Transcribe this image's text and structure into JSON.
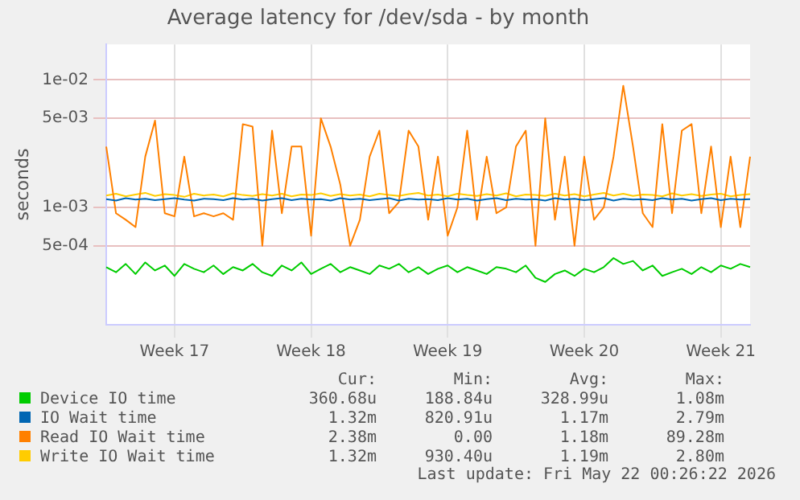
{
  "chart_data": {
    "type": "line",
    "title": "Average latency for /dev/sda - by month",
    "ylabel": "seconds",
    "log": "y",
    "grid": true,
    "legend": "bottom",
    "marker": "none",
    "line_style": "solid",
    "categories": [
      null,
      null,
      null,
      null,
      null,
      null,
      null,
      "Week 17",
      null,
      null,
      null,
      null,
      null,
      null,
      null,
      null,
      null,
      null,
      null,
      null,
      null,
      "Week 18",
      null,
      null,
      null,
      null,
      null,
      null,
      null,
      null,
      null,
      null,
      null,
      null,
      null,
      "Week 19",
      null,
      null,
      null,
      null,
      null,
      null,
      null,
      null,
      null,
      null,
      null,
      null,
      null,
      "Week 20",
      null,
      null,
      null,
      null,
      null,
      null,
      null,
      null,
      null,
      null,
      null,
      null,
      null,
      "Week 21",
      null,
      null,
      null
    ],
    "ylim": [
      0.00012,
      0.019
    ],
    "yticks": [
      {
        "value": 0.0005,
        "label": "5e-04"
      },
      {
        "value": 0.001,
        "label": "1e-03"
      },
      {
        "value": 0.005,
        "label": "5e-03"
      },
      {
        "value": 0.01,
        "label": "1e-02"
      }
    ],
    "series": [
      {
        "name": "Device IO time",
        "color": "#00cc00",
        "values": [
          0.00034,
          0.00031,
          0.00036,
          0.0003,
          0.00037,
          0.00032,
          0.00035,
          0.00029,
          0.00036,
          0.00033,
          0.00031,
          0.00035,
          0.0003,
          0.00034,
          0.00032,
          0.00036,
          0.00031,
          0.00029,
          0.00035,
          0.00032,
          0.00037,
          0.0003,
          0.00033,
          0.00036,
          0.00031,
          0.00034,
          0.00032,
          0.0003,
          0.00035,
          0.00033,
          0.00036,
          0.00031,
          0.00034,
          0.0003,
          0.00033,
          0.00035,
          0.00031,
          0.00034,
          0.00032,
          0.0003,
          0.00034,
          0.00033,
          0.00031,
          0.00035,
          0.00028,
          0.00026,
          0.0003,
          0.00032,
          0.00029,
          0.00033,
          0.00031,
          0.00034,
          0.0004,
          0.00036,
          0.00038,
          0.00032,
          0.00035,
          0.00029,
          0.00031,
          0.00033,
          0.0003,
          0.00034,
          0.00031,
          0.00035,
          0.00033,
          0.00036,
          0.00034
        ]
      },
      {
        "name": "IO Wait time",
        "color": "#0066b3",
        "values": [
          0.00116,
          0.00113,
          0.00118,
          0.00115,
          0.00117,
          0.00114,
          0.00116,
          0.00118,
          0.00115,
          0.00113,
          0.00117,
          0.00116,
          0.00114,
          0.00118,
          0.00115,
          0.00117,
          0.00113,
          0.00116,
          0.00118,
          0.00114,
          0.00117,
          0.00115,
          0.00116,
          0.00113,
          0.00118,
          0.00115,
          0.00117,
          0.00114,
          0.00116,
          0.00118,
          0.00113,
          0.00117,
          0.00115,
          0.00116,
          0.00114,
          0.00118,
          0.00115,
          0.00117,
          0.00113,
          0.00116,
          0.00118,
          0.00114,
          0.00117,
          0.00115,
          0.00116,
          0.00113,
          0.00118,
          0.00115,
          0.00117,
          0.00114,
          0.00116,
          0.00118,
          0.00113,
          0.00117,
          0.00115,
          0.00116,
          0.00114,
          0.00118,
          0.00115,
          0.00117,
          0.00113,
          0.00116,
          0.00118,
          0.00114,
          0.00117,
          0.00115,
          0.00116
        ]
      },
      {
        "name": "Read IO Wait time",
        "color": "#ff8000",
        "values": [
          0.003,
          0.0009,
          0.0008,
          0.0007,
          0.0025,
          0.0048,
          0.0009,
          0.00085,
          0.0025,
          0.00085,
          0.0009,
          0.00085,
          0.0009,
          0.0008,
          0.0045,
          0.0043,
          0.0005,
          0.004,
          0.0009,
          0.003,
          0.003,
          0.0006,
          0.005,
          0.003,
          0.0015,
          0.0005,
          0.0008,
          0.0025,
          0.004,
          0.0009,
          0.0011,
          0.004,
          0.003,
          0.0008,
          0.0025,
          0.0006,
          0.001,
          0.004,
          0.0008,
          0.0025,
          0.0009,
          0.001,
          0.003,
          0.004,
          0.0005,
          0.005,
          0.0008,
          0.0025,
          0.0005,
          0.0025,
          0.0008,
          0.001,
          0.0025,
          0.009,
          0.003,
          0.0009,
          0.0007,
          0.0045,
          0.0009,
          0.004,
          0.0045,
          0.0009,
          0.003,
          0.0007,
          0.0025,
          0.0007,
          0.0025
        ]
      },
      {
        "name": "Write IO Wait time",
        "color": "#ffcc00",
        "values": [
          0.00124,
          0.00128,
          0.00122,
          0.00126,
          0.0013,
          0.00123,
          0.00127,
          0.00125,
          0.00121,
          0.00128,
          0.00124,
          0.00126,
          0.00122,
          0.00129,
          0.00125,
          0.00123,
          0.00127,
          0.00124,
          0.00128,
          0.00122,
          0.00126,
          0.00125,
          0.00129,
          0.00123,
          0.00127,
          0.00124,
          0.00126,
          0.00122,
          0.00128,
          0.00125,
          0.00123,
          0.00127,
          0.0013,
          0.00124,
          0.00126,
          0.00122,
          0.00128,
          0.00125,
          0.00123,
          0.00127,
          0.00124,
          0.00129,
          0.00122,
          0.00126,
          0.00125,
          0.00123,
          0.00128,
          0.00124,
          0.00127,
          0.00122,
          0.00126,
          0.0013,
          0.00124,
          0.00128,
          0.00123,
          0.00126,
          0.00125,
          0.00122,
          0.00129,
          0.00124,
          0.00127,
          0.00123,
          0.00126,
          0.00128,
          0.00122,
          0.00125,
          0.00127
        ]
      }
    ],
    "annotations": [
      "Cur:",
      "Min:",
      "Avg:",
      "Max:",
      "360.68u",
      "188.84u",
      "328.99u",
      "1.08m",
      "1.32m",
      "820.91u",
      "1.17m",
      "2.79m",
      "2.38m",
      "0.00",
      "1.18m",
      "89.28m",
      "1.32m",
      "930.40u",
      "1.19m",
      "2.80m",
      "Last update: Fri May 22 00:26:22 2026"
    ]
  }
}
